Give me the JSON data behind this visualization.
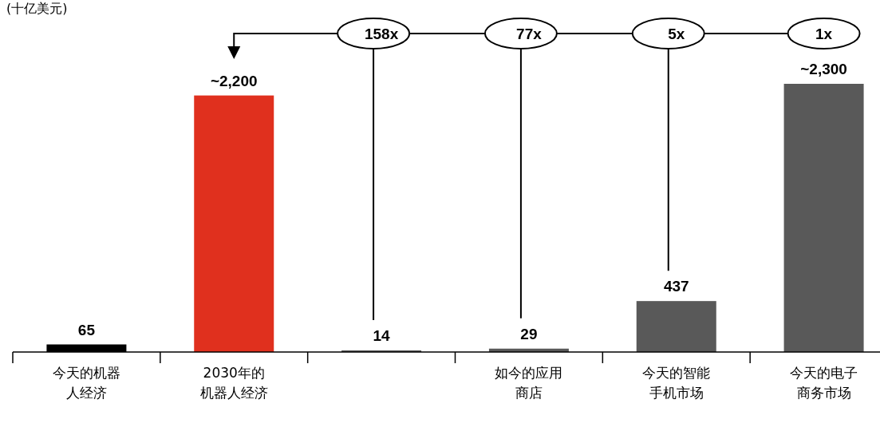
{
  "chart_data": {
    "type": "bar",
    "title": "(十亿美元)",
    "categories": [
      "今天的机器人经济",
      "2030年的机器人经济",
      null,
      "如今的应用商店",
      "今天的智能手机市场",
      "今天的电子商务市场"
    ],
    "values": [
      65,
      2200,
      14,
      29,
      437,
      2300
    ],
    "colors": [
      "#000000",
      "#e0301e",
      "#595959",
      "#595959",
      "#595959",
      "#595959"
    ],
    "value_labels": [
      "65",
      "~2,200",
      "14",
      "29",
      "437",
      "~2,300"
    ],
    "annotations": [
      "158x",
      "77x",
      "5x",
      "1x"
    ]
  }
}
